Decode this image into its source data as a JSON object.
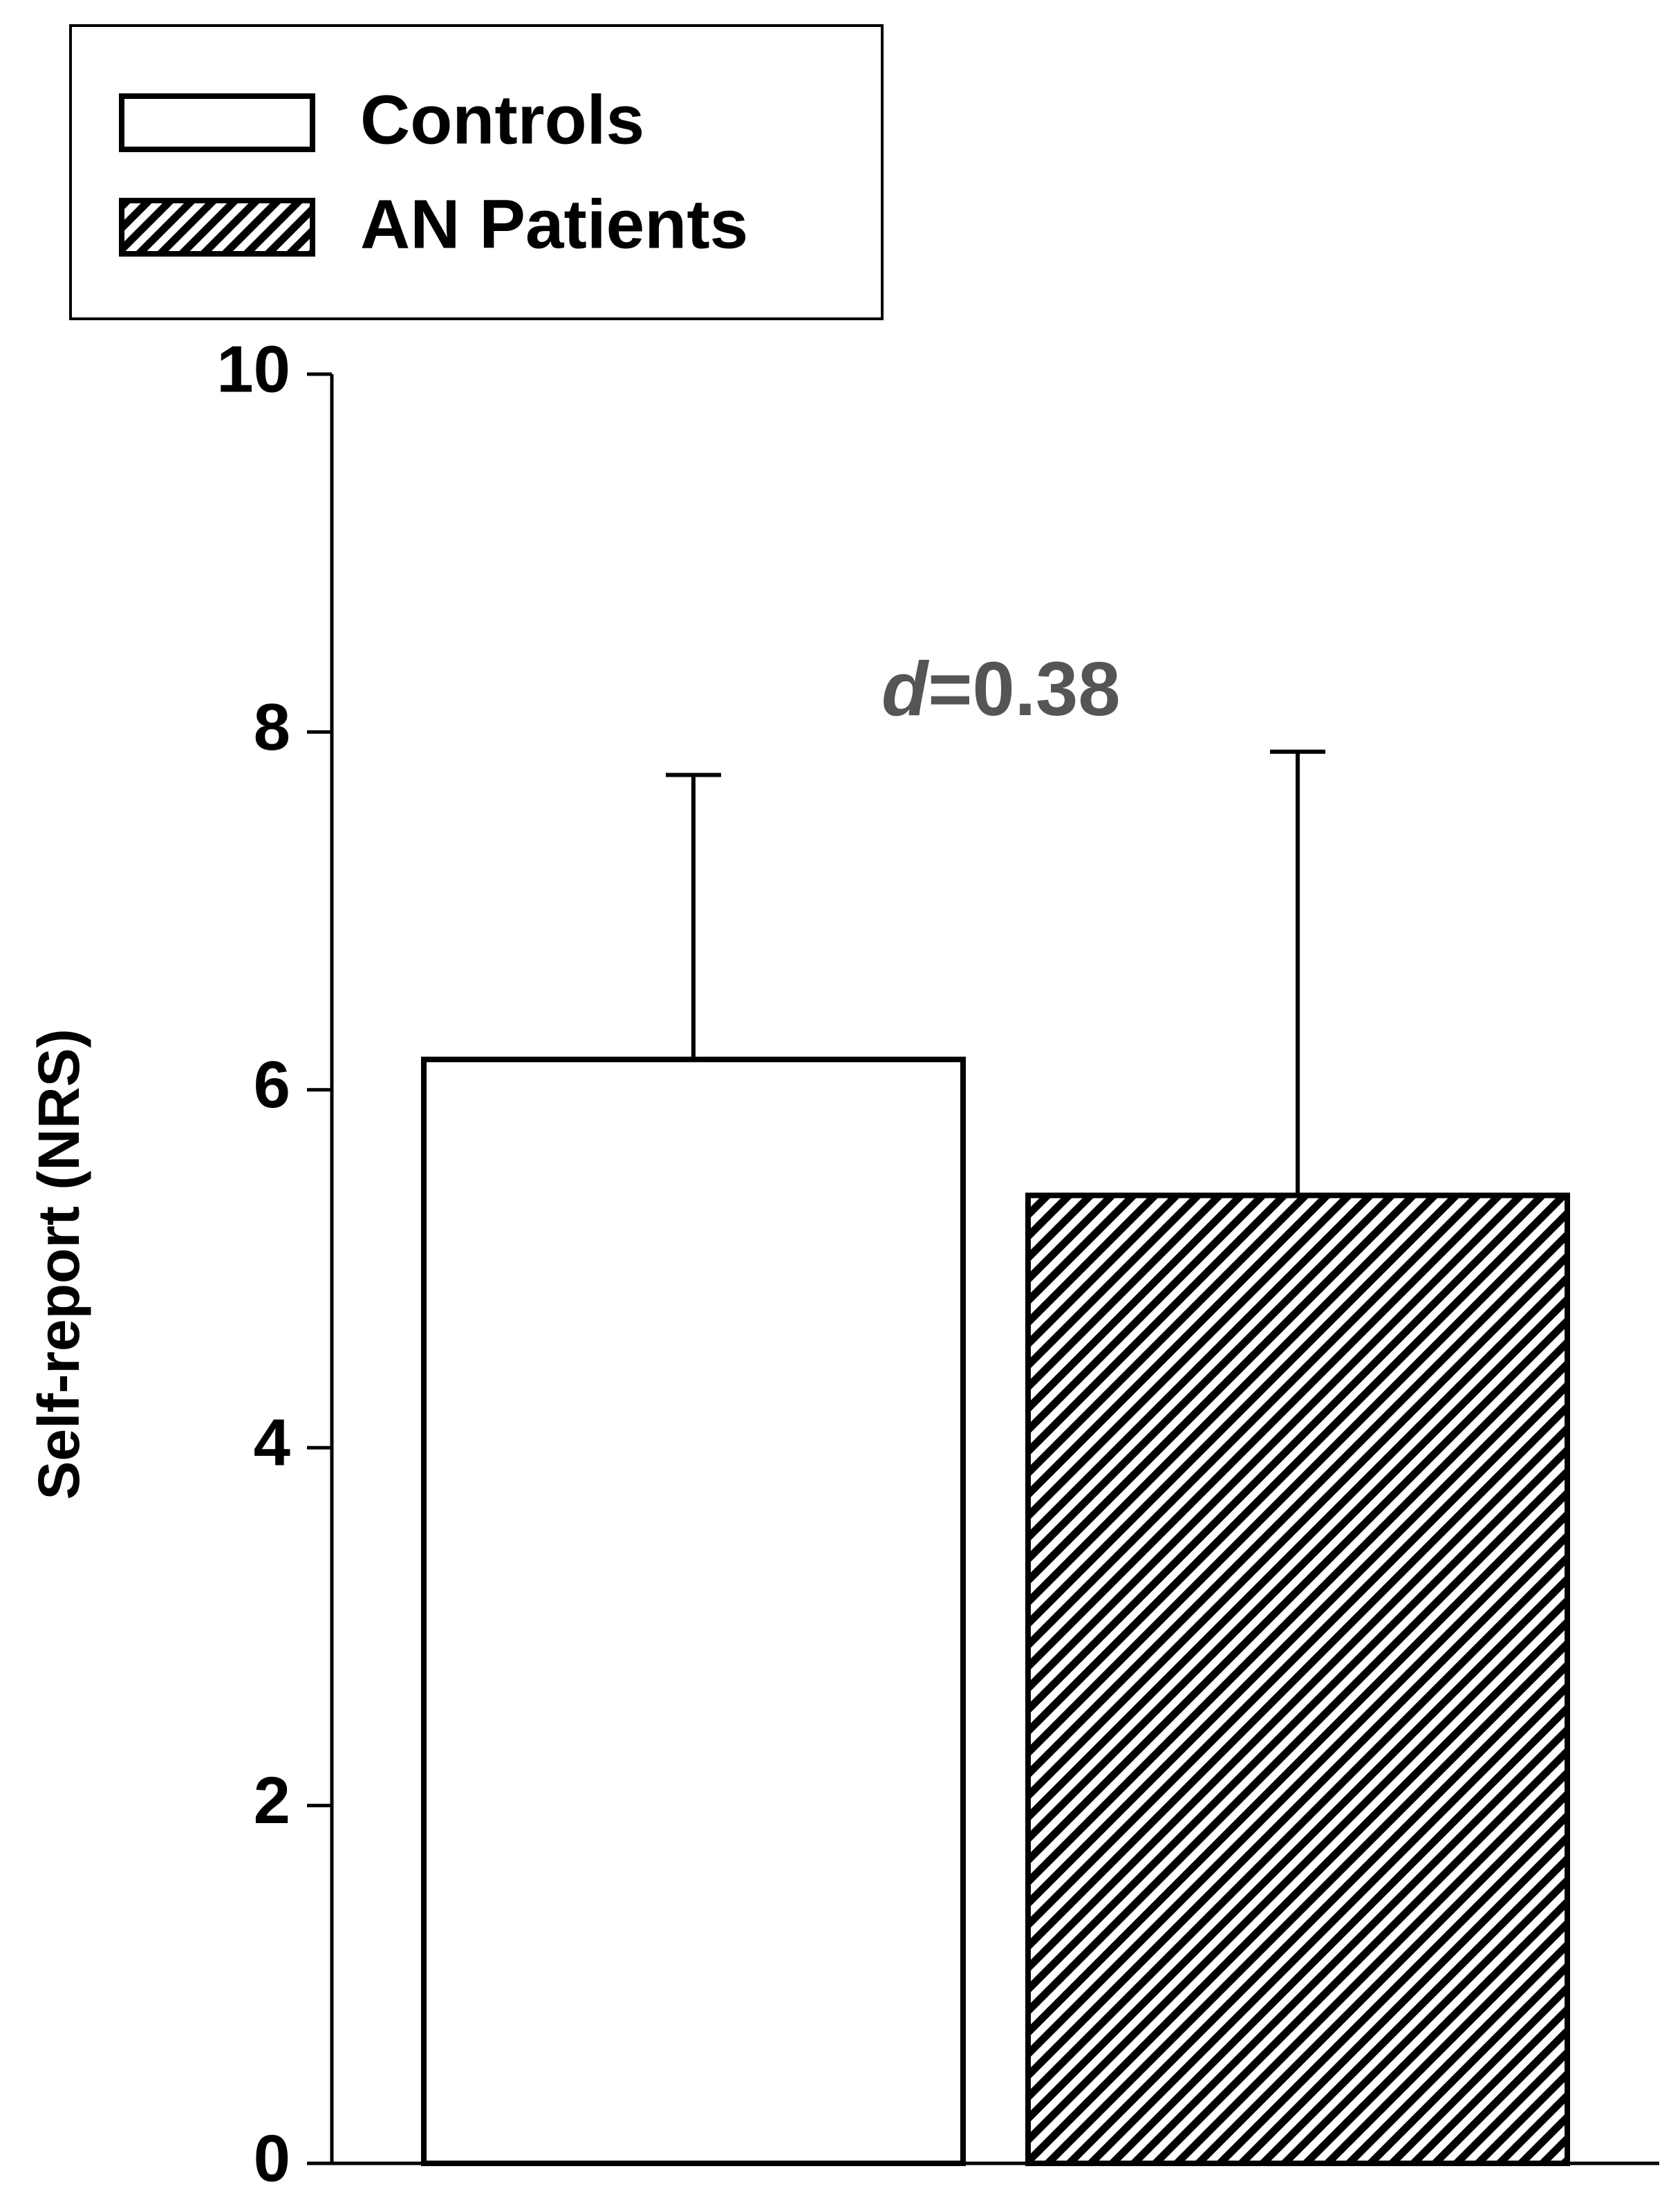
{
  "chart_data": {
    "type": "bar",
    "y_label": "Self-report (NRS)",
    "annotation": "d=0.38",
    "categories": [
      null
    ],
    "series": [
      {
        "name": "Controls",
        "color": "#ffffff",
        "pattern": "solid",
        "values": [
          6.17
        ],
        "errors": [
          1.59
        ]
      },
      {
        "name": "AN Patients",
        "color": "#000000",
        "pattern": "hatch",
        "values": [
          5.41
        ],
        "errors": [
          2.48
        ]
      }
    ],
    "ylim": [
      0,
      10
    ],
    "yticks": [
      0,
      2,
      4,
      6,
      8,
      10
    ],
    "grid": false,
    "legend": "top-left"
  }
}
